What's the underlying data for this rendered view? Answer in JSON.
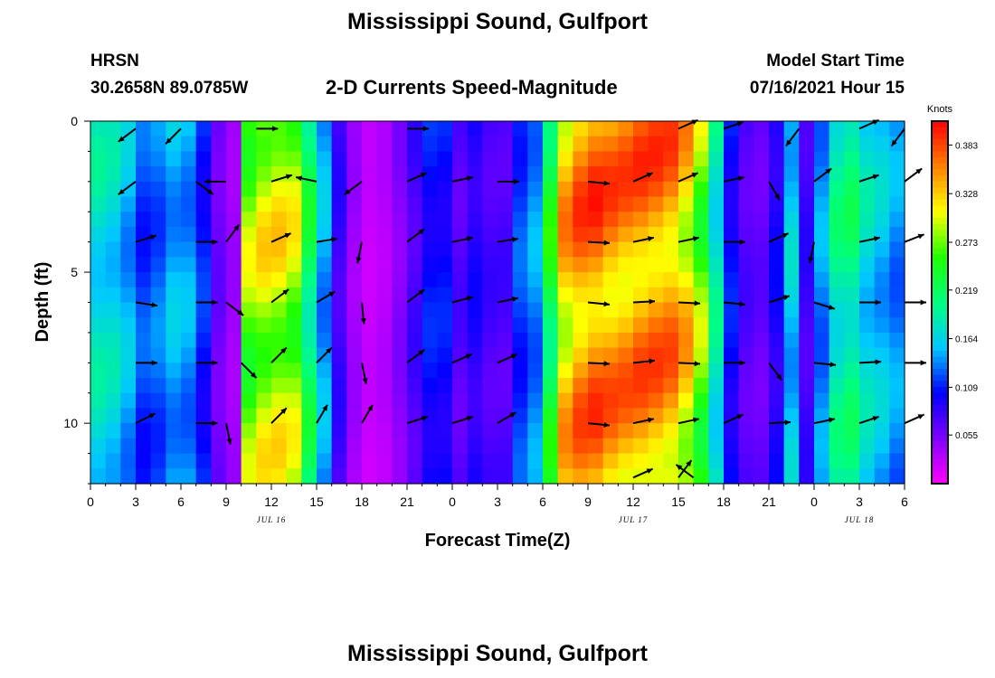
{
  "page": {
    "title_top": "Mississippi Sound, Gulfport",
    "title_bottom": "Mississippi Sound, Gulfport",
    "station": "HRSN",
    "coordinates": "30.2658N  89.0785W",
    "model_start_label": "Model Start Time",
    "model_start_value": "07/16/2021 Hour 15"
  },
  "chart_data": {
    "type": "heatmap",
    "title": "2-D Currents Speed-Magnitude",
    "xlabel": "Forecast Time(Z)",
    "ylabel": "Depth (ft)",
    "x_ticks": [
      "0",
      "3",
      "6",
      "9",
      "12",
      "15",
      "18",
      "21",
      "0",
      "3",
      "6",
      "9",
      "12",
      "15",
      "18",
      "21",
      "0",
      "3",
      "6"
    ],
    "x_start_hour_label": 0,
    "x_range_hours": [
      0,
      54
    ],
    "date_labels": [
      {
        "hour": 12,
        "text": "JUL 16"
      },
      {
        "hour": 36,
        "text": "JUL 17"
      },
      {
        "hour": 51,
        "text": "JUL 18"
      }
    ],
    "y_ticks": [
      0,
      5,
      10
    ],
    "y_range": [
      0,
      12
    ],
    "y_inverted": true,
    "colorbar": {
      "units": "Knots",
      "range": [
        0,
        0.41
      ],
      "ticks": [
        "0.383",
        "0.328",
        "0.273",
        "0.219",
        "0.164",
        "0.109",
        "0.055"
      ],
      "tick_values": [
        0.383,
        0.328,
        0.273,
        0.219,
        0.164,
        0.109,
        0.055
      ]
    },
    "colors": [
      "#ff00ff",
      "#8000ff",
      "#0000ff",
      "#00c8ff",
      "#00ff80",
      "#20ff00",
      "#ffff00",
      "#ff8000",
      "#ff0000"
    ],
    "time_columns": [
      0.5,
      1.5,
      2.5,
      3.5,
      4.5,
      5.5,
      6.5,
      7.5,
      8.5,
      9.5,
      10.5,
      11.5,
      12.5,
      13.5,
      14.5,
      15.5,
      16.5,
      17.5,
      18.5,
      19.5,
      20.5,
      21.5,
      22.5,
      23.5,
      24.5,
      25.5,
      26.5,
      27.5,
      28.5,
      29.5,
      30.5,
      31.5,
      32.5,
      33.5,
      34.5,
      35.5,
      36.5,
      37.5,
      38.5,
      39.5,
      40.5,
      41.5,
      42.5,
      43.5,
      44.5,
      45.5,
      46.5,
      47.5,
      48.5,
      49.5,
      50.5,
      51.5,
      52.5,
      53.5
    ],
    "depth_rows": [
      0.25,
      0.75,
      1.25,
      1.75,
      2.25,
      2.75,
      3.25,
      3.75,
      4.25,
      4.75,
      5.25,
      5.75,
      6.25,
      6.75,
      7.25,
      7.75,
      8.25,
      8.75,
      9.25,
      9.75,
      10.25,
      10.75,
      11.25,
      11.75
    ],
    "speed_profile": [
      [
        0,
        0.18
      ],
      [
        1.5,
        0.17
      ],
      [
        2.5,
        0.15
      ],
      [
        3.5,
        0.12
      ],
      [
        4.5,
        0.13
      ],
      [
        6,
        0.16
      ],
      [
        7.5,
        0.11
      ],
      [
        8.5,
        0.06
      ],
      [
        9.5,
        0.04
      ],
      [
        10.5,
        0.28
      ],
      [
        12,
        0.31
      ],
      [
        13.5,
        0.29
      ],
      [
        15,
        0.18
      ],
      [
        16.5,
        0.08
      ],
      [
        18,
        0.02
      ],
      [
        19.5,
        0.03
      ],
      [
        21,
        0.06
      ],
      [
        22,
        0.09
      ],
      [
        23,
        0.12
      ],
      [
        24.5,
        0.07
      ],
      [
        26,
        0.1
      ],
      [
        27,
        0.05
      ],
      [
        28.5,
        0.12
      ],
      [
        30,
        0.15
      ],
      [
        31,
        0.32
      ],
      [
        33,
        0.37
      ],
      [
        35,
        0.35
      ],
      [
        37,
        0.36
      ],
      [
        39,
        0.35
      ],
      [
        41,
        0.25
      ],
      [
        42,
        0.12
      ],
      [
        43.5,
        0.07
      ],
      [
        45,
        0.06
      ],
      [
        46.5,
        0.16
      ],
      [
        47.5,
        0.08
      ],
      [
        48.5,
        0.14
      ],
      [
        50,
        0.22
      ],
      [
        51.5,
        0.17
      ],
      [
        53,
        0.15
      ],
      [
        54,
        0.13
      ]
    ],
    "vectors": [
      {
        "t": 3,
        "d": 0.25,
        "u": -0.8,
        "v": -0.6
      },
      {
        "t": 6,
        "d": 0.25,
        "u": -0.7,
        "v": -0.7
      },
      {
        "t": 11,
        "d": 0.25,
        "u": 1,
        "v": 0
      },
      {
        "t": 21,
        "d": 0.25,
        "u": 1,
        "v": 0
      },
      {
        "t": 39,
        "d": 0.25,
        "u": 0.9,
        "v": 0.4
      },
      {
        "t": 42,
        "d": 0.25,
        "u": 0.9,
        "v": 0.3
      },
      {
        "t": 47,
        "d": 0.25,
        "u": -0.6,
        "v": -0.8
      },
      {
        "t": 51,
        "d": 0.25,
        "u": 0.9,
        "v": 0.4
      },
      {
        "t": 54,
        "d": 0.25,
        "u": -0.6,
        "v": -0.8
      },
      {
        "t": 3,
        "d": 2,
        "u": -0.8,
        "v": -0.6
      },
      {
        "t": 7,
        "d": 2,
        "u": 0.8,
        "v": -0.6
      },
      {
        "t": 9,
        "d": 2,
        "u": -1,
        "v": 0
      },
      {
        "t": 12,
        "d": 2,
        "u": 0.95,
        "v": 0.3
      },
      {
        "t": 15,
        "d": 2,
        "u": -0.95,
        "v": 0.2
      },
      {
        "t": 18,
        "d": 2,
        "u": -0.8,
        "v": -0.6
      },
      {
        "t": 21,
        "d": 2,
        "u": 0.9,
        "v": 0.4
      },
      {
        "t": 24,
        "d": 2,
        "u": 0.95,
        "v": 0.2
      },
      {
        "t": 27,
        "d": 2,
        "u": 1,
        "v": 0
      },
      {
        "t": 33,
        "d": 2,
        "u": 1,
        "v": -0.1
      },
      {
        "t": 36,
        "d": 2,
        "u": 0.9,
        "v": 0.4
      },
      {
        "t": 39,
        "d": 2,
        "u": 0.9,
        "v": 0.4
      },
      {
        "t": 42,
        "d": 2,
        "u": 0.95,
        "v": 0.2
      },
      {
        "t": 45,
        "d": 2,
        "u": 0.5,
        "v": -0.85
      },
      {
        "t": 48,
        "d": 2,
        "u": 0.8,
        "v": 0.6
      },
      {
        "t": 51,
        "d": 2,
        "u": 0.9,
        "v": 0.3
      },
      {
        "t": 54,
        "d": 2,
        "u": 0.8,
        "v": 0.6
      },
      {
        "t": 3,
        "d": 4,
        "u": 0.95,
        "v": 0.3
      },
      {
        "t": 7,
        "d": 4,
        "u": 1,
        "v": 0
      },
      {
        "t": 9,
        "d": 4,
        "u": 0.6,
        "v": 0.8
      },
      {
        "t": 12,
        "d": 4,
        "u": 0.9,
        "v": 0.4
      },
      {
        "t": 15,
        "d": 4,
        "u": 0.95,
        "v": 0.15
      },
      {
        "t": 18,
        "d": 4,
        "u": -0.2,
        "v": -0.98
      },
      {
        "t": 21,
        "d": 4,
        "u": 0.8,
        "v": 0.6
      },
      {
        "t": 24,
        "d": 4,
        "u": 0.95,
        "v": 0.2
      },
      {
        "t": 27,
        "d": 4,
        "u": 0.95,
        "v": 0.15
      },
      {
        "t": 33,
        "d": 4,
        "u": 1,
        "v": -0.05
      },
      {
        "t": 36,
        "d": 4,
        "u": 0.95,
        "v": 0.2
      },
      {
        "t": 39,
        "d": 4,
        "u": 0.95,
        "v": 0.2
      },
      {
        "t": 42,
        "d": 4,
        "u": 1,
        "v": 0
      },
      {
        "t": 45,
        "d": 4,
        "u": 0.9,
        "v": 0.4
      },
      {
        "t": 48,
        "d": 4,
        "u": -0.2,
        "v": -0.98
      },
      {
        "t": 51,
        "d": 4,
        "u": 0.95,
        "v": 0.2
      },
      {
        "t": 54,
        "d": 4,
        "u": 0.9,
        "v": 0.35
      },
      {
        "t": 3,
        "d": 6,
        "u": 1,
        "v": -0.15
      },
      {
        "t": 7,
        "d": 6,
        "u": 1,
        "v": 0
      },
      {
        "t": 9,
        "d": 6,
        "u": 0.8,
        "v": -0.6
      },
      {
        "t": 12,
        "d": 6,
        "u": 0.8,
        "v": 0.6
      },
      {
        "t": 15,
        "d": 6,
        "u": 0.85,
        "v": 0.5
      },
      {
        "t": 18,
        "d": 6,
        "u": 0.1,
        "v": -1
      },
      {
        "t": 21,
        "d": 6,
        "u": 0.8,
        "v": 0.6
      },
      {
        "t": 24,
        "d": 6,
        "u": 0.95,
        "v": 0.25
      },
      {
        "t": 27,
        "d": 6,
        "u": 0.95,
        "v": 0.2
      },
      {
        "t": 33,
        "d": 6,
        "u": 1,
        "v": -0.1
      },
      {
        "t": 36,
        "d": 6,
        "u": 1,
        "v": 0.05
      },
      {
        "t": 39,
        "d": 6,
        "u": 1,
        "v": -0.05
      },
      {
        "t": 42,
        "d": 6,
        "u": 1,
        "v": -0.1
      },
      {
        "t": 45,
        "d": 6,
        "u": 0.95,
        "v": 0.3
      },
      {
        "t": 48,
        "d": 6,
        "u": 0.95,
        "v": -0.3
      },
      {
        "t": 51,
        "d": 6,
        "u": 1,
        "v": 0
      },
      {
        "t": 54,
        "d": 6,
        "u": 1,
        "v": 0
      },
      {
        "t": 3,
        "d": 8,
        "u": 1,
        "v": 0
      },
      {
        "t": 7,
        "d": 8,
        "u": 1,
        "v": 0
      },
      {
        "t": 10,
        "d": 8,
        "u": 0.7,
        "v": -0.7
      },
      {
        "t": 12,
        "d": 8,
        "u": 0.7,
        "v": 0.7
      },
      {
        "t": 15,
        "d": 8,
        "u": 0.7,
        "v": 0.7
      },
      {
        "t": 18,
        "d": 8,
        "u": 0.2,
        "v": -0.98
      },
      {
        "t": 21,
        "d": 8,
        "u": 0.8,
        "v": 0.6
      },
      {
        "t": 24,
        "d": 8,
        "u": 0.9,
        "v": 0.4
      },
      {
        "t": 27,
        "d": 8,
        "u": 0.9,
        "v": 0.4
      },
      {
        "t": 33,
        "d": 8,
        "u": 1,
        "v": -0.05
      },
      {
        "t": 36,
        "d": 8,
        "u": 1,
        "v": 0.1
      },
      {
        "t": 39,
        "d": 8,
        "u": 1,
        "v": -0.05
      },
      {
        "t": 42,
        "d": 8,
        "u": 1,
        "v": 0
      },
      {
        "t": 45,
        "d": 8,
        "u": 0.6,
        "v": -0.8
      },
      {
        "t": 48,
        "d": 8,
        "u": 1,
        "v": -0.1
      },
      {
        "t": 51,
        "d": 8,
        "u": 1,
        "v": 0.05
      },
      {
        "t": 54,
        "d": 8,
        "u": 1,
        "v": 0
      },
      {
        "t": 3,
        "d": 10,
        "u": 0.9,
        "v": 0.45
      },
      {
        "t": 7,
        "d": 10,
        "u": 1,
        "v": 0
      },
      {
        "t": 9,
        "d": 10,
        "u": 0.2,
        "v": -0.98
      },
      {
        "t": 12,
        "d": 10,
        "u": 0.7,
        "v": 0.7
      },
      {
        "t": 15,
        "d": 10,
        "u": 0.5,
        "v": 0.85
      },
      {
        "t": 18,
        "d": 10,
        "u": 0.5,
        "v": 0.85
      },
      {
        "t": 21,
        "d": 10,
        "u": 0.95,
        "v": 0.3
      },
      {
        "t": 24,
        "d": 10,
        "u": 0.95,
        "v": 0.3
      },
      {
        "t": 27,
        "d": 10,
        "u": 0.85,
        "v": 0.5
      },
      {
        "t": 33,
        "d": 10,
        "u": 1,
        "v": -0.1
      },
      {
        "t": 36,
        "d": 10,
        "u": 0.95,
        "v": 0.2
      },
      {
        "t": 39,
        "d": 10,
        "u": 0.95,
        "v": 0.2
      },
      {
        "t": 42,
        "d": 10,
        "u": 0.9,
        "v": 0.4
      },
      {
        "t": 45,
        "d": 10,
        "u": 1,
        "v": 0.05
      },
      {
        "t": 48,
        "d": 10,
        "u": 0.95,
        "v": 0.2
      },
      {
        "t": 51,
        "d": 10,
        "u": 0.9,
        "v": 0.3
      },
      {
        "t": 54,
        "d": 10,
        "u": 0.9,
        "v": 0.4
      },
      {
        "t": 36,
        "d": 11.8,
        "u": 0.9,
        "v": 0.4
      },
      {
        "t": 39,
        "d": 11.8,
        "u": 0.6,
        "v": 0.8
      },
      {
        "t": 40,
        "d": 11.8,
        "u": -0.8,
        "v": 0.6
      }
    ]
  }
}
